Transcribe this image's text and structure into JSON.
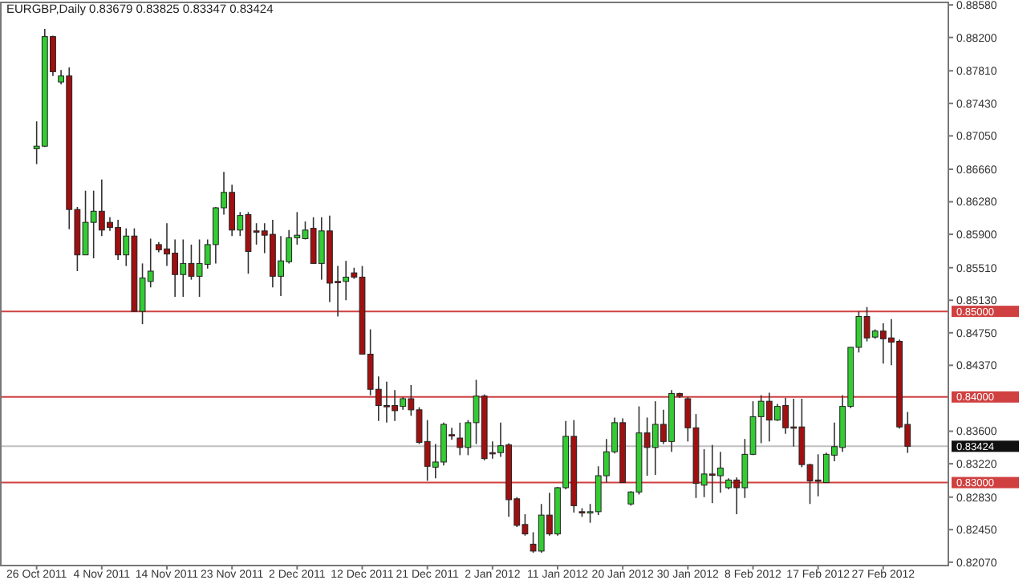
{
  "chart_data": {
    "type": "candlestick",
    "title": "EURGBP,Daily  0.83679 0.83825 0.83347 0.83424",
    "categories": [
      "26 Oct 2011",
      null,
      null,
      null,
      null,
      null,
      null,
      null,
      "4 Nov 2011",
      null,
      null,
      null,
      null,
      null,
      null,
      null,
      "14 Nov 2011",
      null,
      null,
      null,
      null,
      null,
      null,
      null,
      "23 Nov 2011",
      null,
      null,
      null,
      null,
      null,
      null,
      null,
      "2 Dec 2011",
      null,
      null,
      null,
      null,
      null,
      null,
      null,
      "12 Dec 2011",
      null,
      null,
      null,
      null,
      null,
      null,
      null,
      "21 Dec 2011",
      null,
      null,
      null,
      null,
      null,
      null,
      null,
      "2 Jan 2012",
      null,
      null,
      null,
      null,
      null,
      null,
      null,
      "11 Jan 2012",
      null,
      null,
      null,
      null,
      null,
      null,
      null,
      "20 Jan 2012",
      null,
      null,
      null,
      null,
      null,
      null,
      null,
      "30 Jan 2012",
      null,
      null,
      null,
      null,
      null,
      null,
      null,
      "8 Feb 2012",
      null,
      null,
      null,
      null,
      null,
      null,
      null,
      "17 Feb 2012",
      null,
      null,
      null,
      null,
      null,
      null,
      null,
      "27 Feb 2012",
      null,
      null,
      null
    ],
    "ohlc": [
      [
        0.869,
        0.8722,
        0.8672,
        0.8693
      ],
      [
        0.8693,
        0.883,
        0.8692,
        0.8821
      ],
      [
        0.8821,
        0.8822,
        0.8775,
        0.878
      ],
      [
        0.8768,
        0.8782,
        0.8765,
        0.8775
      ],
      [
        0.8775,
        0.8785,
        0.8596,
        0.8619
      ],
      [
        0.8619,
        0.8622,
        0.8547,
        0.8566
      ],
      [
        0.8566,
        0.8641,
        0.8566,
        0.8604
      ],
      [
        0.8604,
        0.8641,
        0.8562,
        0.8617
      ],
      [
        0.8617,
        0.8654,
        0.8588,
        0.8595
      ],
      [
        0.8604,
        0.861,
        0.8594,
        0.8598
      ],
      [
        0.8598,
        0.8607,
        0.856,
        0.8566
      ],
      [
        0.8566,
        0.8597,
        0.8553,
        0.8588
      ],
      [
        0.8588,
        0.8597,
        0.85,
        0.85
      ],
      [
        0.85,
        0.8556,
        0.8485,
        0.8539
      ],
      [
        0.8535,
        0.8585,
        0.8528,
        0.8547
      ],
      [
        0.8578,
        0.8581,
        0.8569,
        0.8572
      ],
      [
        0.8573,
        0.8603,
        0.8553,
        0.8567
      ],
      [
        0.8568,
        0.8584,
        0.8517,
        0.8543
      ],
      [
        0.8543,
        0.8584,
        0.8517,
        0.8556
      ],
      [
        0.8556,
        0.8578,
        0.8537,
        0.8541
      ],
      [
        0.8541,
        0.8584,
        0.8517,
        0.8556
      ],
      [
        0.8555,
        0.8584,
        0.855,
        0.8578
      ],
      [
        0.8578,
        0.8622,
        0.8556,
        0.8621
      ],
      [
        0.8621,
        0.8663,
        0.8613,
        0.8639
      ],
      [
        0.8639,
        0.8648,
        0.8588,
        0.8595
      ],
      [
        0.8595,
        0.8616,
        0.8588,
        0.8612
      ],
      [
        0.8613,
        0.8616,
        0.8544,
        0.857
      ],
      [
        0.8594,
        0.8603,
        0.8578,
        0.8593
      ],
      [
        0.8594,
        0.8603,
        0.8568,
        0.8589
      ],
      [
        0.859,
        0.8607,
        0.8528,
        0.8541
      ],
      [
        0.8541,
        0.8588,
        0.8518,
        0.8559
      ],
      [
        0.8558,
        0.8595,
        0.8556,
        0.8586
      ],
      [
        0.8586,
        0.8616,
        0.8578,
        0.8589
      ],
      [
        0.8585,
        0.8605,
        0.8584,
        0.8595
      ],
      [
        0.8597,
        0.861,
        0.8556,
        0.8556
      ],
      [
        0.8556,
        0.861,
        0.8537,
        0.8594
      ],
      [
        0.8594,
        0.8612,
        0.8511,
        0.8533
      ],
      [
        0.8535,
        0.8553,
        0.8494,
        0.8534
      ],
      [
        0.8535,
        0.8559,
        0.8513,
        0.854
      ],
      [
        0.8545,
        0.8551,
        0.8538,
        0.854
      ],
      [
        0.854,
        0.8553,
        0.845,
        0.845
      ],
      [
        0.845,
        0.8479,
        0.8402,
        0.8409
      ],
      [
        0.8409,
        0.8424,
        0.8372,
        0.839
      ],
      [
        0.839,
        0.8418,
        0.837,
        0.839
      ],
      [
        0.839,
        0.8408,
        0.8372,
        0.8384
      ],
      [
        0.8389,
        0.84,
        0.8385,
        0.8398
      ],
      [
        0.8398,
        0.8414,
        0.8378,
        0.8385
      ],
      [
        0.8385,
        0.8388,
        0.8345,
        0.8347
      ],
      [
        0.8348,
        0.8373,
        0.8302,
        0.8319
      ],
      [
        0.8318,
        0.8345,
        0.8305,
        0.8324
      ],
      [
        0.8324,
        0.837,
        0.832,
        0.8368
      ],
      [
        0.8356,
        0.8364,
        0.835,
        0.8356
      ],
      [
        0.8352,
        0.837,
        0.8332,
        0.8341
      ],
      [
        0.8341,
        0.8373,
        0.8332,
        0.837
      ],
      [
        0.837,
        0.842,
        0.8345,
        0.8401
      ],
      [
        0.8401,
        0.8403,
        0.8326,
        0.8328
      ],
      [
        0.8335,
        0.8348,
        0.8328,
        0.8335
      ],
      [
        0.8335,
        0.837,
        0.833,
        0.8343
      ],
      [
        0.8344,
        0.8346,
        0.826,
        0.828
      ],
      [
        0.8281,
        0.8283,
        0.8248,
        0.825
      ],
      [
        0.8251,
        0.8263,
        0.8238,
        0.824
      ],
      [
        0.8228,
        0.8242,
        0.8218,
        0.822
      ],
      [
        0.822,
        0.8275,
        0.8218,
        0.8262
      ],
      [
        0.8262,
        0.8288,
        0.8238,
        0.824
      ],
      [
        0.824,
        0.8295,
        0.8238,
        0.8294
      ],
      [
        0.8294,
        0.8372,
        0.8292,
        0.8354
      ],
      [
        0.8354,
        0.8373,
        0.8265,
        0.8273
      ],
      [
        0.8266,
        0.827,
        0.826,
        0.8265
      ],
      [
        0.8265,
        0.8275,
        0.8253,
        0.8266
      ],
      [
        0.8266,
        0.8319,
        0.8262,
        0.8308
      ],
      [
        0.8308,
        0.8351,
        0.83,
        0.8336
      ],
      [
        0.8336,
        0.8376,
        0.8334,
        0.837
      ],
      [
        0.837,
        0.8375,
        0.83,
        0.83
      ],
      [
        0.8275,
        0.829,
        0.8273,
        0.8289
      ],
      [
        0.8289,
        0.8389,
        0.8286,
        0.8358
      ],
      [
        0.8358,
        0.8376,
        0.8308,
        0.8341
      ],
      [
        0.8341,
        0.8395,
        0.8309,
        0.8368
      ],
      [
        0.8368,
        0.8385,
        0.8345,
        0.8348
      ],
      [
        0.8348,
        0.8408,
        0.8336,
        0.8404
      ],
      [
        0.8404,
        0.8405,
        0.8399,
        0.8401
      ],
      [
        0.8398,
        0.84,
        0.8348,
        0.8364
      ],
      [
        0.8364,
        0.838,
        0.8282,
        0.8299
      ],
      [
        0.8297,
        0.8339,
        0.8283,
        0.831
      ],
      [
        0.831,
        0.8344,
        0.8276,
        0.8309
      ],
      [
        0.8308,
        0.8336,
        0.8288,
        0.8317
      ],
      [
        0.8294,
        0.8305,
        0.8292,
        0.8303
      ],
      [
        0.8303,
        0.8306,
        0.8263,
        0.8294
      ],
      [
        0.8294,
        0.8351,
        0.8282,
        0.8333
      ],
      [
        0.8333,
        0.8395,
        0.8332,
        0.8377
      ],
      [
        0.8377,
        0.8402,
        0.8346,
        0.8395
      ],
      [
        0.8395,
        0.8405,
        0.8348,
        0.8373
      ],
      [
        0.8373,
        0.8392,
        0.8372,
        0.8389
      ],
      [
        0.839,
        0.8399,
        0.8357,
        0.8364
      ],
      [
        0.8365,
        0.8398,
        0.8342,
        0.8365
      ],
      [
        0.8365,
        0.8398,
        0.8318,
        0.8321
      ],
      [
        0.8321,
        0.8322,
        0.8275,
        0.8302
      ],
      [
        0.8303,
        0.8333,
        0.8284,
        0.8302
      ],
      [
        0.83,
        0.8335,
        0.83,
        0.8333
      ],
      [
        0.8332,
        0.837,
        0.8325,
        0.8342
      ],
      [
        0.8341,
        0.8402,
        0.8336,
        0.8389
      ],
      [
        0.8389,
        0.8458,
        0.8387,
        0.8458
      ],
      [
        0.8458,
        0.85,
        0.8452,
        0.8494
      ],
      [
        0.8494,
        0.8505,
        0.8465,
        0.8469
      ],
      [
        0.847,
        0.8479,
        0.8468,
        0.8477
      ],
      [
        0.8477,
        0.8486,
        0.8439,
        0.8468
      ],
      [
        0.8469,
        0.8491,
        0.8437,
        0.8464
      ],
      [
        0.8465,
        0.8467,
        0.8363,
        0.8365
      ],
      [
        0.83679,
        0.83825,
        0.83347,
        0.83424
      ]
    ],
    "colors": [
      "#33cc33",
      "#33cc33",
      "#a01010",
      "#33cc33",
      "#a01010",
      "#a01010",
      "#33cc33",
      "#33cc33",
      "#a01010",
      "#a01010",
      "#a01010",
      "#33cc33",
      "#a01010",
      "#33cc33",
      "#33cc33",
      "#a01010",
      "#a01010",
      "#a01010",
      "#33cc33",
      "#a01010",
      "#33cc33",
      "#33cc33",
      "#33cc33",
      "#33cc33",
      "#a01010",
      "#33cc33",
      "#a01010",
      "#a01010",
      "#a01010",
      "#a01010",
      "#33cc33",
      "#33cc33",
      "#33cc33",
      "#33cc33",
      "#a01010",
      "#33cc33",
      "#a01010",
      "#a01010",
      "#33cc33",
      "#a01010",
      "#a01010",
      "#a01010",
      "#a01010",
      "#a01010",
      "#a01010",
      "#33cc33",
      "#a01010",
      "#a01010",
      "#a01010",
      "#33cc33",
      "#33cc33",
      "#a01010",
      "#a01010",
      "#33cc33",
      "#33cc33",
      "#a01010",
      "#a01010",
      "#33cc33",
      "#a01010",
      "#a01010",
      "#a01010",
      "#a01010",
      "#33cc33",
      "#a01010",
      "#33cc33",
      "#33cc33",
      "#a01010",
      "#a01010",
      "#33cc33",
      "#33cc33",
      "#33cc33",
      "#33cc33",
      "#a01010",
      "#33cc33",
      "#33cc33",
      "#a01010",
      "#33cc33",
      "#a01010",
      "#33cc33",
      "#a01010",
      "#a01010",
      "#a01010",
      "#33cc33",
      "#a01010",
      "#33cc33",
      "#33cc33",
      "#a01010",
      "#33cc33",
      "#33cc33",
      "#33cc33",
      "#a01010",
      "#33cc33",
      "#a01010",
      "#a01010",
      "#a01010",
      "#a01010",
      "#a01010",
      "#33cc33",
      "#33cc33",
      "#33cc33",
      "#33cc33",
      "#33cc33",
      "#a01010",
      "#33cc33",
      "#a01010",
      "#a01010",
      "#a01010",
      "#a01010"
    ],
    "ylim": [
      0.8204,
      0.886
    ],
    "yticks": [
      {
        "value": 0.8858,
        "label": "0.88580"
      },
      {
        "value": 0.882,
        "label": "0.88200"
      },
      {
        "value": 0.8781,
        "label": "0.87810"
      },
      {
        "value": 0.8743,
        "label": "0.87430"
      },
      {
        "value": 0.8705,
        "label": "0.87050"
      },
      {
        "value": 0.8666,
        "label": "0.86660"
      },
      {
        "value": 0.8628,
        "label": "0.86280"
      },
      {
        "value": 0.859,
        "label": "0.85900"
      },
      {
        "value": 0.8551,
        "label": "0.85510"
      },
      {
        "value": 0.8513,
        "label": "0.85130"
      },
      {
        "value": 0.8475,
        "label": "0.84750"
      },
      {
        "value": 0.8437,
        "label": "0.84370"
      },
      {
        "value": 0.836,
        "label": "0.83600"
      },
      {
        "value": 0.8322,
        "label": "0.83220"
      },
      {
        "value": 0.8283,
        "label": "0.82830"
      },
      {
        "value": 0.8245,
        "label": "0.82450"
      },
      {
        "value": 0.8207,
        "label": "0.82070"
      }
    ],
    "ref_lines": [
      {
        "axis": "y",
        "value": 0.85,
        "label": "0.85000",
        "color": "#d04040"
      },
      {
        "axis": "y",
        "value": 0.84,
        "label": "0.84000",
        "color": "#d04040"
      },
      {
        "axis": "y",
        "value": 0.83,
        "label": "0.83000",
        "color": "#d04040"
      },
      {
        "axis": "y",
        "value": 0.83424,
        "label": "0.83424",
        "color": "#c0c0c0"
      }
    ],
    "grid": false
  }
}
